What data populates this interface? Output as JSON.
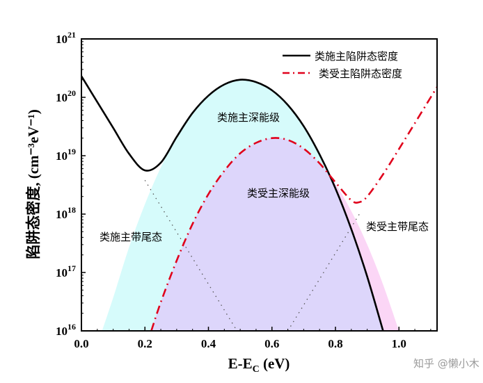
{
  "chart_data": {
    "type": "line",
    "xlabel_main": "E-E",
    "xlabel_sub": "C",
    "xlabel_unit": " (eV)",
    "ylabel": "陷阱态密度, (cm⁻³eV⁻¹)",
    "yscale": "log",
    "xlim": [
      0.0,
      1.12
    ],
    "ylim": [
      1e+16,
      1e+21
    ],
    "xticks": [
      "0.0",
      "0.2",
      "0.4",
      "0.6",
      "0.8",
      "1.0"
    ],
    "xtick_values": [
      0.0,
      0.2,
      0.4,
      0.6,
      0.8,
      1.0
    ],
    "yticks": [
      {
        "base": "10",
        "exp": "16"
      },
      {
        "base": "10",
        "exp": "17"
      },
      {
        "base": "10",
        "exp": "18"
      },
      {
        "base": "10",
        "exp": "19"
      },
      {
        "base": "10",
        "exp": "20"
      },
      {
        "base": "10",
        "exp": "21"
      }
    ],
    "ytick_values": [
      1e+16,
      1e+17,
      1e+18,
      1e+19,
      1e+20,
      1e+21
    ],
    "grid": false,
    "legend_placement": "top-right",
    "colors": {
      "donor": "#000000",
      "acceptor": "#e0001b",
      "donor_fill": "#d6fbfb",
      "overlap_fill": "#ddd6fb",
      "acceptor_fill": "#fbd6f6",
      "tail": "#555555"
    },
    "series": [
      {
        "name": "类施主陷阱态密度",
        "style": "solid",
        "x": [
          0,
          0.05,
          0.1,
          0.15,
          0.2,
          0.25,
          0.3,
          0.35,
          0.4,
          0.45,
          0.5,
          0.55,
          0.6,
          0.65,
          0.7,
          0.75,
          0.8,
          0.85,
          0.9,
          0.95
        ],
        "y": [
          2.3e+20,
          8.3e+19,
          3e+19,
          1.08e+19,
          5.6e+18,
          7.6e+18,
          2.1e+19,
          5.4e+19,
          1.07e+20,
          1.66e+20,
          2e+20,
          1.82e+20,
          1.32e+20,
          7.4e+19,
          3.2e+19,
          1.05e+19,
          2.75e+18,
          5.5e+17,
          8.5e+16,
          1e+16
        ]
      },
      {
        "name": "类受主陷阱态密度",
        "style": "dash-dot",
        "x": [
          0.22,
          0.25,
          0.3,
          0.35,
          0.4,
          0.45,
          0.5,
          0.55,
          0.6,
          0.65,
          0.7,
          0.75,
          0.8,
          0.85,
          0.875,
          0.9,
          0.95,
          1.0,
          1.05,
          1.1,
          1.12
        ],
        "y": [
          1e+16,
          3.1e+16,
          1.6e+17,
          6.8e+17,
          2.2e+18,
          5.5e+18,
          1.1e+19,
          1.66e+19,
          2e+19,
          1.86e+19,
          1.32e+19,
          7.4e+18,
          3.5e+18,
          1.72e+18,
          1.6e+18,
          2e+18,
          4.8e+18,
          1.3e+19,
          3.6e+19,
          1e+20,
          1.5e+20
        ]
      }
    ],
    "components": {
      "donor_tail": {
        "x": [
          0.2,
          0.49
        ],
        "y": [
          3.8e+18,
          1e+16
        ]
      },
      "acceptor_tail": {
        "x": [
          0.65,
          0.88
        ],
        "y": [
          1e+16,
          1.1e+18
        ]
      },
      "donor_deep": {
        "x": [
          0.065,
          0.1,
          0.15,
          0.2,
          0.25,
          0.3,
          0.35,
          0.4,
          0.45,
          0.5,
          0.55,
          0.6,
          0.65,
          0.7,
          0.75,
          0.8,
          0.85,
          0.9,
          0.95
        ],
        "y": [
          1e+16,
          3.7e+16,
          2.7e+17,
          1.48e+18,
          6.3e+18,
          2.1e+19,
          5.4e+19,
          1.07e+20,
          1.66e+20,
          2e+20,
          1.82e+20,
          1.32e+20,
          7.4e+19,
          3.2e+19,
          1.05e+19,
          2.75e+18,
          5.5e+17,
          8.5e+16,
          1e+16
        ]
      },
      "acceptor_deep": {
        "x": [
          0.22,
          0.25,
          0.3,
          0.35,
          0.4,
          0.45,
          0.5,
          0.55,
          0.6,
          0.65,
          0.7,
          0.75,
          0.8,
          0.85,
          0.9,
          0.95,
          1.0
        ],
        "y": [
          1e+16,
          3.1e+16,
          1.6e+17,
          6.8e+17,
          2.2e+18,
          5.5e+18,
          1.1e+19,
          1.66e+19,
          2e+19,
          1.86e+19,
          1.32e+19,
          7.4e+18,
          3.3e+18,
          1.12e+18,
          3e+17,
          6.2e+16,
          1e+16
        ]
      }
    },
    "annotations": {
      "donor_deep": "类施主深能级",
      "acceptor_deep": "类受主深能级",
      "donor_tail": "类施主带尾态",
      "acceptor_tail": "类受主带尾态"
    }
  },
  "watermark": "知乎 @懒小木"
}
